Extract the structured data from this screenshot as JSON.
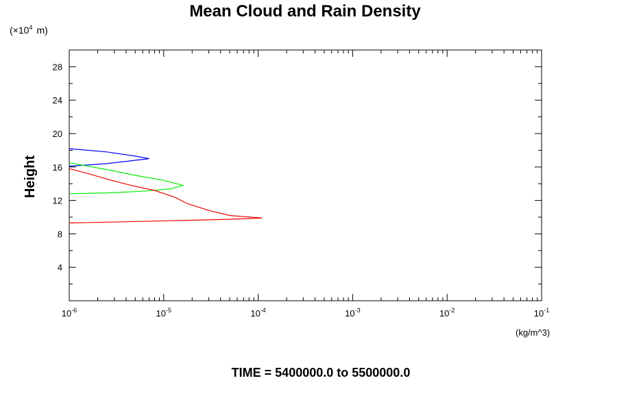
{
  "chart_data": {
    "type": "line",
    "title": "Mean Cloud and Rain Density",
    "ylabel": "Height",
    "y_scale_note": "(×10",
    "y_scale_exp": "4",
    "y_scale_unit": "m)",
    "xlabel_unit": "(kg/m^3)",
    "footer": "TIME = 5400000.0 to 5500000.0",
    "x_scale": "log",
    "xlim": [
      1e-06,
      0.1
    ],
    "ylim": [
      0,
      30
    ],
    "x_major_ticks": [
      {
        "value": 1e-06,
        "base": "10",
        "exp": "-6"
      },
      {
        "value": 1e-05,
        "base": "10",
        "exp": "-5"
      },
      {
        "value": 0.0001,
        "base": "10",
        "exp": "-4"
      },
      {
        "value": 0.001,
        "base": "10",
        "exp": "-3"
      },
      {
        "value": 0.01,
        "base": "10",
        "exp": "-2"
      },
      {
        "value": 0.1,
        "base": "10",
        "exp": "-1"
      }
    ],
    "y_major_ticks": [
      {
        "value": 4,
        "label": "4"
      },
      {
        "value": 8,
        "label": "8"
      },
      {
        "value": 12,
        "label": "12"
      },
      {
        "value": 16,
        "label": "16"
      },
      {
        "value": 20,
        "label": "20"
      },
      {
        "value": 24,
        "label": "24"
      },
      {
        "value": 28,
        "label": "28"
      }
    ],
    "series": [
      {
        "color": "#0000ff",
        "points": [
          [
            1e-06,
            18.2
          ],
          [
            2.5e-06,
            17.8
          ],
          [
            5e-06,
            17.3
          ],
          [
            7e-06,
            17.0
          ],
          [
            5e-06,
            16.8
          ],
          [
            2.5e-06,
            16.4
          ],
          [
            1e-06,
            16.1
          ]
        ]
      },
      {
        "color": "#00ee00",
        "points": [
          [
            1e-06,
            16.5
          ],
          [
            2.5e-06,
            15.7
          ],
          [
            5e-06,
            15.0
          ],
          [
            1e-05,
            14.4
          ],
          [
            1.6e-05,
            13.8
          ],
          [
            1.2e-05,
            13.4
          ],
          [
            6e-06,
            13.1
          ],
          [
            2.5e-06,
            12.9
          ],
          [
            1e-06,
            12.8
          ]
        ]
      },
      {
        "color": "#ee0000",
        "points": [
          [
            1e-06,
            15.8
          ],
          [
            1.6e-06,
            15.2
          ],
          [
            2.6e-06,
            14.5
          ],
          [
            4.5e-06,
            13.8
          ],
          [
            8e-06,
            13.2
          ],
          [
            1.3e-05,
            12.4
          ],
          [
            1.8e-05,
            11.6
          ],
          [
            3e-05,
            10.8
          ],
          [
            5e-05,
            10.2
          ],
          [
            0.00011,
            9.9
          ],
          [
            5e-05,
            9.75
          ],
          [
            1.5e-05,
            9.6
          ],
          [
            4e-06,
            9.45
          ],
          [
            1e-06,
            9.3
          ]
        ]
      }
    ]
  }
}
